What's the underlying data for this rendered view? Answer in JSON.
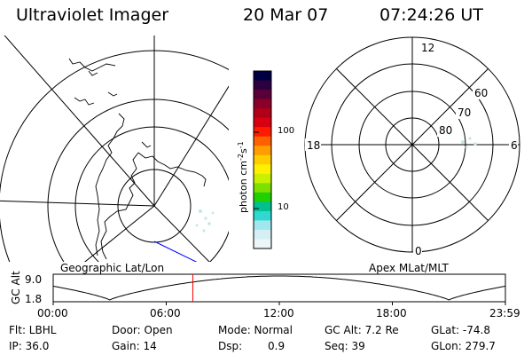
{
  "header": {
    "title": "Ultraviolet Imager",
    "date": "20 Mar 07",
    "time": "07:24:26 UT"
  },
  "geo_map": {
    "label": "Geographic Lat/Lon"
  },
  "apex_map": {
    "label": "Apex MLat/MLT",
    "mlt_labels": [
      "12",
      "18",
      "6",
      "0"
    ],
    "lat_labels": [
      "60",
      "70",
      "80"
    ]
  },
  "colorbar": {
    "label": "photon cm",
    "label_exp1": "-2",
    "label_s": "s",
    "label_exp2": "-1",
    "ticks": [
      "100",
      "10"
    ],
    "colors": [
      "#000040",
      "#2a0040",
      "#5a0038",
      "#8a0028",
      "#b00018",
      "#d80010",
      "#ff1a00",
      "#ff6000",
      "#ff9c00",
      "#ffcc00",
      "#fff000",
      "#c8f000",
      "#7ee000",
      "#20d000",
      "#00c090",
      "#30d8d0",
      "#a0e8ee",
      "#d4f0f4",
      "#ecf6f8"
    ]
  },
  "timeline": {
    "axis_label": "GC Alt",
    "y_ticks": [
      "9.0",
      "1.8"
    ],
    "x_ticks": [
      "00:00",
      "06:00",
      "12:00",
      "18:00",
      "23:59"
    ],
    "marker_hours": 7.41
  },
  "footer": {
    "flt": "Flt: LBHL",
    "ip": "IP: 36.0",
    "door": "Door: Open",
    "gain": "Gain: 14",
    "mode": "Mode: Normal",
    "dsp_label": "Dsp:",
    "dsp_value": "0.9",
    "gc_alt": "GC Alt: 7.2 Re",
    "seq": "Seq: 39",
    "glat": "GLat: -74.8",
    "glon": "GLon: 279.7"
  }
}
